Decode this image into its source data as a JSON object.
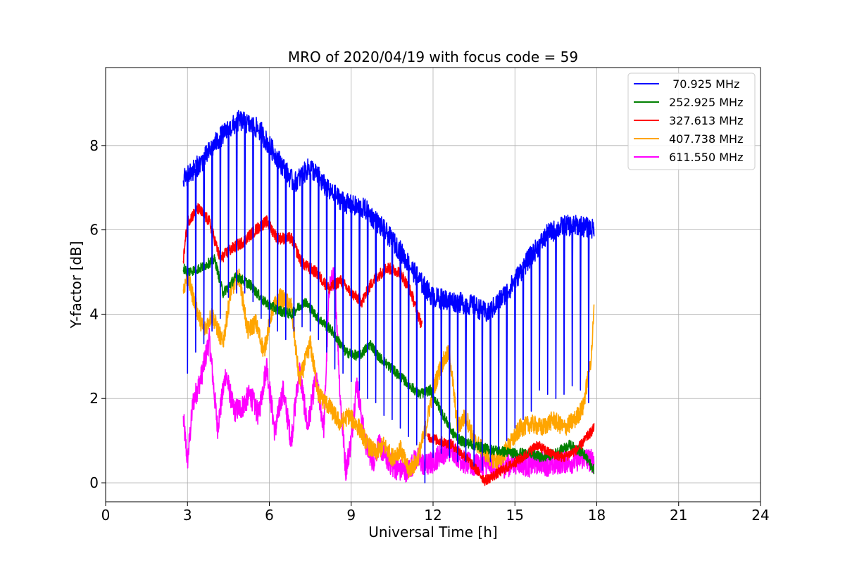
{
  "chart_data": {
    "type": "line",
    "title": "MRO of 2020/04/19 with focus code = 59",
    "xlabel": "Universal Time [h]",
    "ylabel": "Y-factor [dB]",
    "xlim": [
      0,
      24
    ],
    "ylim": [
      -0.45,
      9.85
    ],
    "xticks": [
      0,
      3,
      6,
      9,
      12,
      15,
      18,
      21,
      24
    ],
    "yticks": [
      0,
      2,
      4,
      6,
      8
    ],
    "grid": true,
    "legend_position": "top-right",
    "series": [
      {
        "name": " 70.925 MHz",
        "color": "#0000ff",
        "x": [
          2.85,
          3.5,
          4.2,
          4.9,
          5.6,
          6.2,
          6.9,
          7.5,
          8.2,
          8.9,
          9.5,
          10.2,
          10.8,
          11.5,
          12.0,
          12.8,
          13.5,
          14.0,
          14.8,
          15.5,
          16.2,
          16.8,
          17.4,
          17.9
        ],
        "y": [
          7.2,
          7.6,
          8.2,
          8.6,
          8.4,
          7.8,
          7.1,
          7.5,
          6.9,
          6.6,
          6.5,
          6.0,
          5.5,
          4.8,
          4.4,
          4.3,
          4.2,
          4.0,
          4.6,
          5.3,
          5.9,
          6.1,
          6.1,
          6.0
        ],
        "dips": [
          {
            "x": 3.0,
            "y": 2.6
          },
          {
            "x": 3.3,
            "y": 3.1
          },
          {
            "x": 3.6,
            "y": 3.3
          },
          {
            "x": 3.9,
            "y": 3.6
          },
          {
            "x": 4.2,
            "y": 3.9
          },
          {
            "x": 4.5,
            "y": 4.4
          },
          {
            "x": 4.8,
            "y": 4.5
          },
          {
            "x": 5.1,
            "y": 4.5
          },
          {
            "x": 5.4,
            "y": 4.3
          },
          {
            "x": 5.7,
            "y": 3.9
          },
          {
            "x": 6.0,
            "y": 3.7
          },
          {
            "x": 6.3,
            "y": 3.6
          },
          {
            "x": 6.6,
            "y": 3.4
          },
          {
            "x": 6.9,
            "y": 3.6
          },
          {
            "x": 7.2,
            "y": 3.7
          },
          {
            "x": 7.5,
            "y": 3.6
          },
          {
            "x": 7.8,
            "y": 3.4
          },
          {
            "x": 8.1,
            "y": 3.1
          },
          {
            "x": 8.4,
            "y": 2.7
          },
          {
            "x": 8.7,
            "y": 2.6
          },
          {
            "x": 9.0,
            "y": 2.4
          },
          {
            "x": 9.3,
            "y": 2.2
          },
          {
            "x": 9.6,
            "y": 2.0
          },
          {
            "x": 9.9,
            "y": 1.9
          },
          {
            "x": 10.2,
            "y": 1.6
          },
          {
            "x": 10.5,
            "y": 1.5
          },
          {
            "x": 10.8,
            "y": 1.3
          },
          {
            "x": 11.1,
            "y": 1.1
          },
          {
            "x": 11.4,
            "y": 0.9
          },
          {
            "x": 11.7,
            "y": 0.0
          },
          {
            "x": 12.0,
            "y": 0.6
          },
          {
            "x": 12.3,
            "y": 0.7
          },
          {
            "x": 12.6,
            "y": 0.6
          },
          {
            "x": 12.9,
            "y": 0.5
          },
          {
            "x": 13.2,
            "y": 0.5
          },
          {
            "x": 13.5,
            "y": 0.4
          },
          {
            "x": 13.8,
            "y": 0.3
          },
          {
            "x": 14.1,
            "y": 0.5
          },
          {
            "x": 14.4,
            "y": 0.8
          },
          {
            "x": 14.7,
            "y": 1.0
          },
          {
            "x": 15.0,
            "y": 1.3
          },
          {
            "x": 15.3,
            "y": 1.5
          },
          {
            "x": 15.6,
            "y": 1.7
          },
          {
            "x": 15.9,
            "y": 2.2
          },
          {
            "x": 16.2,
            "y": 2.1
          },
          {
            "x": 16.5,
            "y": 2.0
          },
          {
            "x": 16.8,
            "y": 2.1
          },
          {
            "x": 17.1,
            "y": 2.3
          },
          {
            "x": 17.4,
            "y": 2.2
          },
          {
            "x": 17.7,
            "y": 1.9
          }
        ]
      },
      {
        "name": "252.925 MHz",
        "color": "#008000",
        "x": [
          2.85,
          3.0,
          3.5,
          4.0,
          4.3,
          4.8,
          5.3,
          5.8,
          6.3,
          6.8,
          7.3,
          7.8,
          8.3,
          8.8,
          9.3,
          9.7,
          10.0,
          10.5,
          11.0,
          11.5,
          11.9,
          12.3,
          12.7,
          13.0,
          13.5,
          14.0,
          14.5,
          15.0,
          15.5,
          16.0,
          16.5,
          17.0,
          17.5,
          17.9
        ],
        "y": [
          5.1,
          5.0,
          5.1,
          5.3,
          4.5,
          4.9,
          4.7,
          4.3,
          4.1,
          4.0,
          4.3,
          3.9,
          3.6,
          3.1,
          3.0,
          3.3,
          3.0,
          2.7,
          2.4,
          2.1,
          2.2,
          1.7,
          1.2,
          1.0,
          0.9,
          0.8,
          0.75,
          0.7,
          0.7,
          0.6,
          0.7,
          0.9,
          0.7,
          0.3
        ]
      },
      {
        "name": "327.613 MHz",
        "color": "#ff0000",
        "x": [
          2.85,
          3.0,
          3.4,
          3.8,
          4.2,
          4.5,
          5.0,
          5.5,
          5.9,
          6.3,
          6.8,
          7.2,
          7.7,
          8.2,
          8.6,
          9.0,
          9.4,
          9.8,
          10.3,
          10.8,
          11.2,
          11.6
        ],
        "y": [
          5.3,
          6.2,
          6.5,
          6.2,
          5.3,
          5.5,
          5.7,
          6.0,
          6.2,
          5.8,
          5.8,
          5.2,
          5.0,
          4.6,
          4.8,
          4.5,
          4.3,
          4.8,
          5.1,
          5.0,
          4.5,
          3.7
        ],
        "x2": [
          11.8,
          12.2,
          12.7,
          13.2,
          13.6,
          13.9,
          14.3,
          14.8,
          15.3,
          15.8,
          16.3,
          16.8,
          17.3,
          17.9
        ],
        "y2": [
          1.1,
          1.0,
          0.9,
          0.6,
          0.3,
          0.05,
          0.2,
          0.4,
          0.6,
          0.9,
          0.7,
          0.6,
          0.8,
          1.3
        ]
      },
      {
        "name": "407.738 MHz",
        "color": "#ffa500",
        "x": [
          2.85,
          3.0,
          3.3,
          3.6,
          3.9,
          4.3,
          4.6,
          4.9,
          5.2,
          5.5,
          5.8,
          6.1,
          6.4,
          6.8,
          7.1,
          7.5,
          7.8,
          8.2,
          8.6,
          8.9,
          9.3,
          9.6,
          9.9,
          10.2,
          10.5,
          10.8,
          11.1,
          11.4,
          11.7,
          12.0,
          12.3,
          12.6,
          12.9,
          13.2,
          13.5,
          13.8,
          14.1,
          14.4,
          14.8,
          15.2,
          15.6,
          16.0,
          16.4,
          16.8,
          17.2,
          17.5,
          17.8,
          17.9
        ],
        "y": [
          4.6,
          4.9,
          4.2,
          3.6,
          4.0,
          3.3,
          4.6,
          4.9,
          3.6,
          3.8,
          3.1,
          4.1,
          4.4,
          4.2,
          2.4,
          3.3,
          2.1,
          1.8,
          1.4,
          1.6,
          1.3,
          0.9,
          0.7,
          0.9,
          0.6,
          0.8,
          0.3,
          0.5,
          1.2,
          2.2,
          2.8,
          3.1,
          1.3,
          1.6,
          1.0,
          0.8,
          0.6,
          0.5,
          0.9,
          1.3,
          1.4,
          1.3,
          1.5,
          1.3,
          1.5,
          1.8,
          3.0,
          4.1
        ]
      },
      {
        "name": "611.550 MHz",
        "color": "#ff00ff",
        "x": [
          2.85,
          3.0,
          3.2,
          3.5,
          3.8,
          4.1,
          4.4,
          4.7,
          5.0,
          5.3,
          5.6,
          5.9,
          6.2,
          6.5,
          6.8,
          7.1,
          7.4,
          7.7,
          8.0,
          8.2,
          8.4,
          8.6,
          8.8,
          9.0,
          9.2,
          9.5,
          9.8,
          10.0,
          10.2,
          10.5,
          10.8,
          11.1,
          11.4,
          11.7,
          12.0,
          12.3,
          12.7,
          13.1,
          13.5,
          13.9,
          14.3,
          14.7,
          15.1,
          15.5,
          15.9,
          16.3,
          16.7,
          17.1,
          17.5,
          17.9
        ],
        "y": [
          1.5,
          0.5,
          1.9,
          2.5,
          3.4,
          1.3,
          2.6,
          1.7,
          1.8,
          2.1,
          1.6,
          2.8,
          1.2,
          2.2,
          1.0,
          2.7,
          1.3,
          2.5,
          1.3,
          4.7,
          4.9,
          2.0,
          0.3,
          1.0,
          2.4,
          1.0,
          0.5,
          0.9,
          0.7,
          0.4,
          0.3,
          0.3,
          0.6,
          0.4,
          0.5,
          0.7,
          0.8,
          0.5,
          0.4,
          0.45,
          0.35,
          0.4,
          0.5,
          0.4,
          0.5,
          0.4,
          0.5,
          0.5,
          0.6,
          0.5
        ]
      }
    ]
  }
}
